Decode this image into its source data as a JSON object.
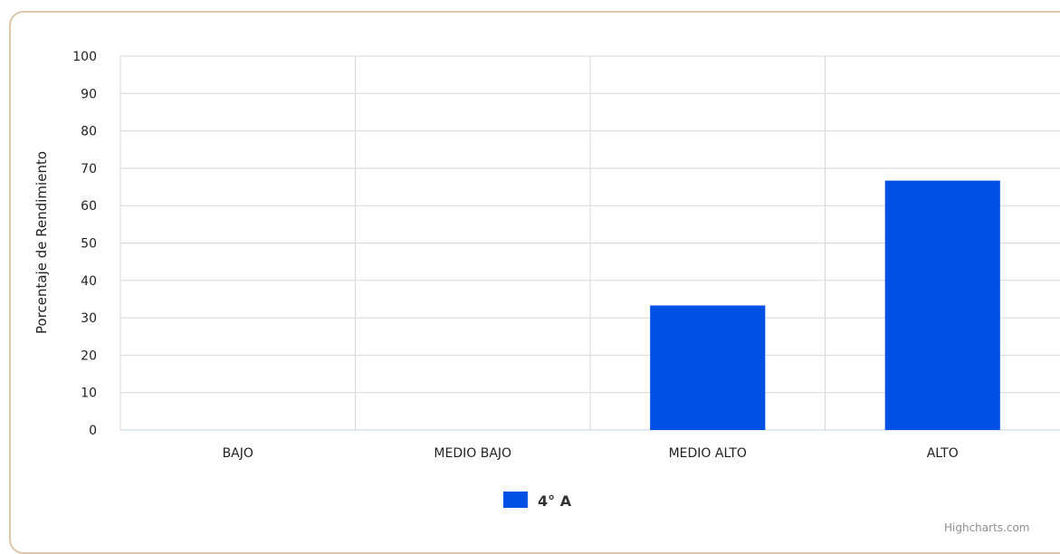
{
  "chart_data": {
    "type": "bar",
    "title": "",
    "xlabel": "",
    "ylabel": "Porcentaje de Rendimiento",
    "categories": [
      "BAJO",
      "MEDIO BAJO",
      "MEDIO ALTO",
      "ALTO"
    ],
    "series": [
      {
        "name": "4° A",
        "values": [
          0,
          0,
          33.3,
          66.7
        ],
        "color": "#0050e6"
      }
    ],
    "ylim": [
      0,
      100
    ],
    "yticks": [
      0,
      10,
      20,
      30,
      40,
      50,
      60,
      70,
      80,
      90,
      100
    ],
    "grid": true,
    "legend": "bottom-center"
  },
  "credits": "Highcharts.com",
  "colors": {
    "gridline": "#d8d8d8",
    "frame": "#dfc6aa",
    "axis": "#c0d0e0"
  }
}
